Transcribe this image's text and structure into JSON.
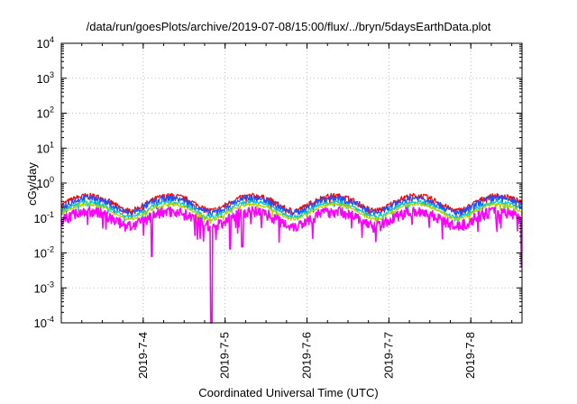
{
  "chart_data": {
    "type": "line",
    "title": "/data/run/goesPlots/archive/2019-07-08/15:00/flux/../bryn/5daysEarthData.plot",
    "xlabel": "Coordinated Universal Time (UTC)",
    "ylabel": "cGy/day",
    "yscale": "log",
    "ylim": [
      0.0001,
      10000
    ],
    "xlim": [
      "2019-07-03 00:00",
      "2019-07-08 15:00"
    ],
    "x_ticks": [
      "2019-7-4",
      "2019-7-5",
      "2019-7-6",
      "2019-7-7",
      "2019-7-8"
    ],
    "y_ticks": [
      {
        "base": "10",
        "exp": "-4"
      },
      {
        "base": "10",
        "exp": "-3"
      },
      {
        "base": "10",
        "exp": "-2"
      },
      {
        "base": "10",
        "exp": "-1"
      },
      {
        "base": "10",
        "exp": "0"
      },
      {
        "base": "10",
        "exp": "1"
      },
      {
        "base": "10",
        "exp": "2"
      },
      {
        "base": "10",
        "exp": "3"
      },
      {
        "base": "10",
        "exp": "4"
      }
    ],
    "grid": true,
    "series": [
      {
        "color": "#ff0000",
        "level": 0.3,
        "spread": 0.18
      },
      {
        "color": "#1e50ff",
        "level": 0.26,
        "spread": 0.22
      },
      {
        "color": "#00c8c8",
        "level": 0.2,
        "spread": 0.12
      },
      {
        "color": "#b0d000",
        "level": 0.17,
        "spread": 0.1
      },
      {
        "color": "#ff00ff",
        "level": 0.11,
        "spread": 0.35
      }
    ],
    "dips": [
      {
        "x": "2019-07-04 02:30",
        "y": 0.008
      },
      {
        "x": "2019-07-04 20:00",
        "y": 0.0001
      },
      {
        "x": "2019-07-05 01:30",
        "y": 0.013
      },
      {
        "x": "2019-07-05 05:00",
        "y": 0.015
      },
      {
        "x": "2019-07-08 15:00",
        "y": 0.004
      }
    ]
  }
}
